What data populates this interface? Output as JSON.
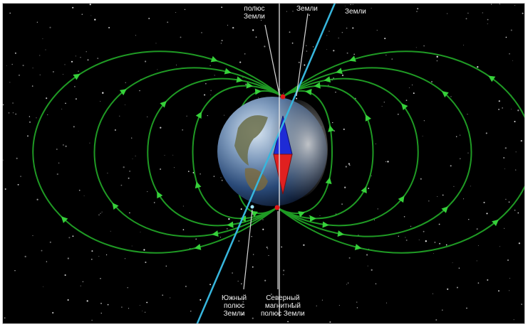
{
  "labels": {
    "top_left": [
      "полюс",
      "Земли"
    ],
    "top_mid": [
      "Земли"
    ],
    "top_right": [
      "Земли"
    ],
    "bottom_left": [
      "Южный",
      "полюс",
      "Земли"
    ],
    "bottom_right": [
      "Северный",
      "магнитный",
      "полюс Земли"
    ]
  },
  "colors": {
    "background": "#000000",
    "field_line": "#1f9a24",
    "arrow": "#36d13a",
    "rotation_axis": "#37b6dd",
    "magnetic_axis": "#e7e7e7",
    "compass_north": "#1e2bd6",
    "compass_south": "#e02020",
    "pole_marker": "#e01818"
  },
  "icons": [
    "earth-globe",
    "compass-needle"
  ]
}
